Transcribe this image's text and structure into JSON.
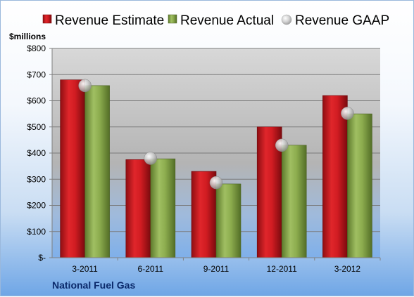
{
  "company": "National Fuel Gas",
  "colors": {
    "estimate": "#c8171d",
    "actual": "#8cac4e",
    "gaap": "#c7c7c7"
  },
  "chart_data": {
    "type": "bar",
    "ylabel": "$millions",
    "ylim": [
      0,
      800
    ],
    "yticks": [
      0,
      100,
      200,
      300,
      400,
      500,
      600,
      700,
      800
    ],
    "ytick_labels": [
      "$-",
      "$100",
      "$200",
      "$300",
      "$400",
      "$500",
      "$600",
      "$700",
      "$800"
    ],
    "categories": [
      "3-2011",
      "6-2011",
      "9-2011",
      "12-2011",
      "3-2012"
    ],
    "series": [
      {
        "name": "Revenue Estimate",
        "type": "bar",
        "values": [
          680,
          375,
          330,
          500,
          620
        ]
      },
      {
        "name": "Revenue Actual",
        "type": "bar",
        "values": [
          658,
          378,
          282,
          430,
          550
        ]
      },
      {
        "name": "Revenue GAAP",
        "type": "marker",
        "values": [
          658,
          380,
          287,
          430,
          552
        ]
      }
    ],
    "legend": "top",
    "grid": true
  }
}
